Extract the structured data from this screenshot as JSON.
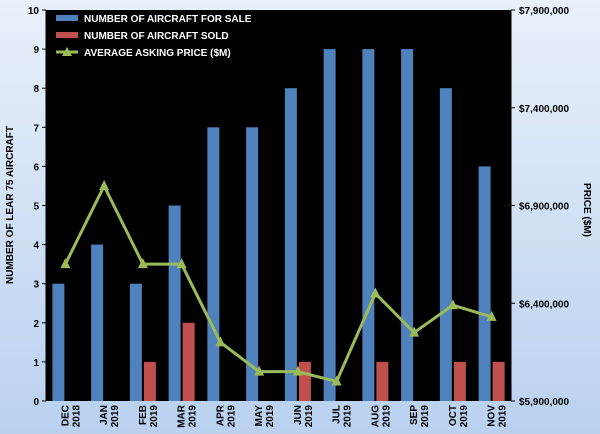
{
  "chart_data": {
    "type": "bar",
    "categories": [
      [
        "DEC",
        "2018"
      ],
      [
        "JAN",
        "2019"
      ],
      [
        "FEB",
        "2019"
      ],
      [
        "MAR",
        "2019"
      ],
      [
        "APR",
        "2019"
      ],
      [
        "MAY",
        "2019"
      ],
      [
        "JUN",
        "2019"
      ],
      [
        "JUL",
        "2019"
      ],
      [
        "AUG",
        "2019"
      ],
      [
        "SEP",
        "2019"
      ],
      [
        "OCT",
        "2019"
      ],
      [
        "NOV",
        "2019"
      ]
    ],
    "series": [
      {
        "name": "NUMBER OF AIRCRAFT FOR SALE",
        "type": "bar",
        "axis": "left",
        "color": "#4f81bd",
        "values": [
          3,
          4,
          3,
          5,
          7,
          7,
          8,
          9,
          9,
          9,
          8,
          6
        ]
      },
      {
        "name": "NUMBER OF AIRCRAFT SOLD",
        "type": "bar",
        "axis": "left",
        "color": "#c0504d",
        "values": [
          0,
          0,
          1,
          2,
          0,
          0,
          1,
          0,
          1,
          0,
          1,
          1
        ]
      },
      {
        "name": "AVERAGE ASKING PRICE ($M)",
        "type": "line",
        "axis": "right",
        "color": "#9bbb59",
        "values": [
          6600000,
          7000000,
          6600000,
          6600000,
          6200000,
          6050000,
          6050000,
          6000000,
          6450000,
          6250000,
          6390000,
          6330000
        ]
      }
    ],
    "ylabel": "NUMBER OF LEAR 75 AIRCRAFT",
    "ylim": [
      0,
      10
    ],
    "yticks": [
      0,
      1,
      2,
      3,
      4,
      5,
      6,
      7,
      8,
      9,
      10
    ],
    "y2label": "PRICE ($M)",
    "y2lim": [
      5900000,
      7900000
    ],
    "y2ticks": [
      5900000,
      6400000,
      6900000,
      7400000,
      7900000
    ],
    "y2ticklabels": [
      "$5,900,000",
      "$6,400,000",
      "$6,900,000",
      "$7,400,000",
      "$7,900,000"
    ],
    "legend_position": "top-left",
    "plot_background": "#000000",
    "grid": false
  }
}
